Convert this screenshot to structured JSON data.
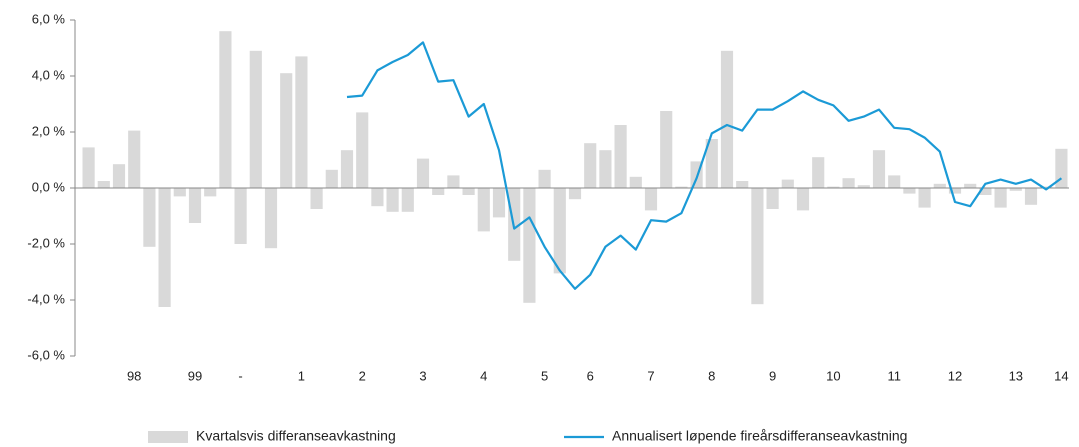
{
  "chart_data": {
    "type": "bar",
    "categories": [
      null,
      null,
      null,
      "98",
      null,
      null,
      null,
      "99",
      null,
      null,
      "-",
      null,
      null,
      null,
      "1",
      null,
      null,
      null,
      "2",
      null,
      null,
      null,
      "3",
      null,
      null,
      null,
      "4",
      null,
      null,
      null,
      "5",
      null,
      null,
      "6",
      null,
      null,
      null,
      "7",
      null,
      null,
      null,
      "8",
      null,
      null,
      null,
      "9",
      null,
      null,
      null,
      "10",
      null,
      null,
      null,
      "11",
      null,
      null,
      null,
      "12",
      null,
      null,
      null,
      "13",
      null,
      null,
      "14"
    ],
    "series": [
      {
        "name": "Kvartalsvis differanseavkastning",
        "type": "bar",
        "color": "#d9d9d9",
        "values": [
          1.45,
          0.25,
          0.85,
          2.05,
          -2.1,
          -4.25,
          -0.3,
          -1.25,
          -0.3,
          5.6,
          -2.0,
          4.9,
          -2.15,
          4.1,
          4.7,
          -0.75,
          0.65,
          1.35,
          2.7,
          -0.65,
          -0.85,
          -0.85,
          1.05,
          -0.25,
          0.45,
          -0.25,
          -1.55,
          -1.05,
          -2.6,
          -4.1,
          0.65,
          -3.05,
          -0.4,
          1.6,
          1.35,
          2.25,
          0.4,
          -0.8,
          2.75,
          0.05,
          0.95,
          1.75,
          4.9,
          0.25,
          -4.15,
          -0.75,
          0.3,
          -0.8,
          1.1,
          0.05,
          0.35,
          0.1,
          1.35,
          0.45,
          -0.2,
          -0.7,
          0.15,
          -0.2,
          0.15,
          -0.25,
          -0.7,
          -0.1,
          -0.6,
          0.05,
          1.4
        ]
      },
      {
        "name": "Annualisert løpende fireårsdifferanseavkastning",
        "type": "line",
        "color": "#1b9ad6",
        "values": [
          null,
          null,
          null,
          null,
          null,
          null,
          null,
          null,
          null,
          null,
          null,
          null,
          null,
          null,
          null,
          null,
          null,
          3.25,
          3.3,
          4.2,
          4.5,
          4.75,
          5.2,
          3.8,
          3.85,
          2.55,
          3.0,
          1.35,
          -1.45,
          -1.05,
          -2.1,
          -2.95,
          -3.6,
          -3.1,
          -2.1,
          -1.7,
          -2.2,
          -1.15,
          -1.2,
          -0.9,
          0.35,
          1.95,
          2.25,
          2.05,
          2.8,
          2.8,
          3.1,
          3.45,
          3.15,
          2.95,
          2.4,
          2.55,
          2.8,
          2.15,
          2.1,
          1.8,
          1.3,
          -0.5,
          -0.65,
          0.15,
          0.3,
          0.15,
          0.3,
          -0.05,
          0.35
        ]
      }
    ],
    "ylim": [
      -6,
      6
    ],
    "yticks": [
      {
        "value": -6,
        "label": "-6,0 %"
      },
      {
        "value": -4,
        "label": "-4,0 %"
      },
      {
        "value": -2,
        "label": "-2,0 %"
      },
      {
        "value": 0,
        "label": "0,0 %"
      },
      {
        "value": 2,
        "label": "2,0 %"
      },
      {
        "value": 4,
        "label": "4,0 %"
      },
      {
        "value": 6,
        "label": "6,0 %"
      }
    ],
    "grid": false,
    "legend": "bottom"
  }
}
